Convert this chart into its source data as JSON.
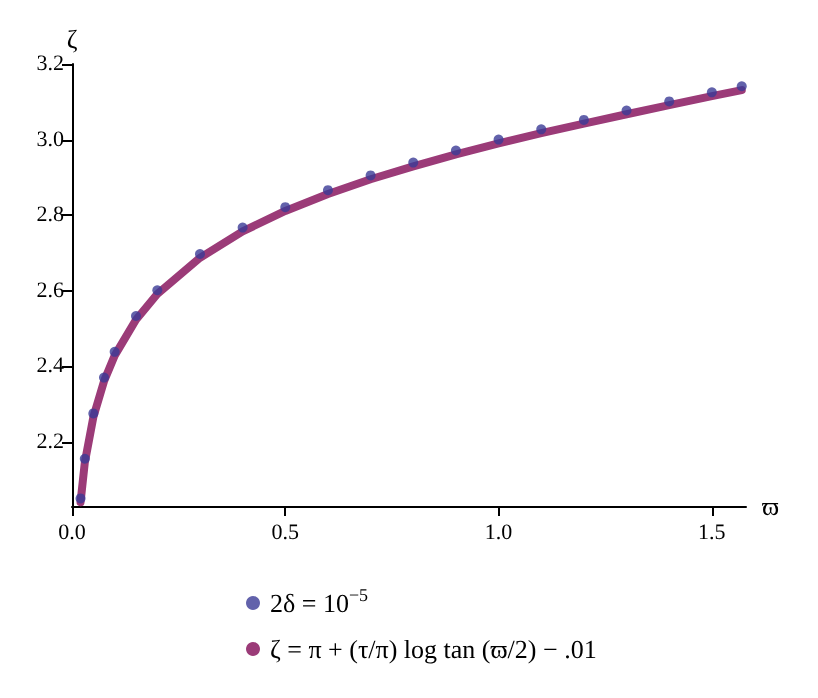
{
  "chart_data": {
    "type": "line",
    "xlabel": "ϖ",
    "ylabel": "ζ",
    "xlim": [
      0,
      1.58
    ],
    "xticks": [
      {
        "value": 0,
        "label": "0.0"
      },
      0.5,
      {
        "value": 1,
        "label": "1.0"
      },
      1.5
    ],
    "ylim": [
      2.03,
      3.2
    ],
    "yticks": [
      2.2,
      2.4,
      2.6,
      2.8,
      {
        "value": 3,
        "label": "3.0"
      },
      3.2
    ],
    "x": [
      0.02,
      0.03,
      0.05,
      0.075,
      0.1,
      0.15,
      0.2,
      0.3,
      0.4,
      0.5,
      0.6,
      0.7,
      0.8,
      0.9,
      1.0,
      1.1,
      1.2,
      1.3,
      1.4,
      1.5,
      1.57
    ],
    "series": [
      {
        "name": "2δ = 10$^{−5}$",
        "type": "scatter",
        "marker": "circle",
        "color": "#3b3b96",
        "values": [
          2.05,
          2.155,
          2.275,
          2.37,
          2.438,
          2.533,
          2.601,
          2.697,
          2.767,
          2.821,
          2.866,
          2.905,
          2.939,
          2.971,
          3.0,
          3.027,
          3.052,
          3.077,
          3.101,
          3.125,
          3.141
        ]
      },
      {
        "name": "ζ = π + (τ/π) log tan (ϖ/2) − .01",
        "color": "#9b3b78",
        "values": [
          2.04,
          2.145,
          2.265,
          2.36,
          2.428,
          2.523,
          2.591,
          2.687,
          2.757,
          2.811,
          2.856,
          2.895,
          2.929,
          2.961,
          2.99,
          3.017,
          3.042,
          3.067,
          3.091,
          3.115,
          3.131
        ]
      }
    ],
    "legend": "bottom",
    "grid": false
  }
}
